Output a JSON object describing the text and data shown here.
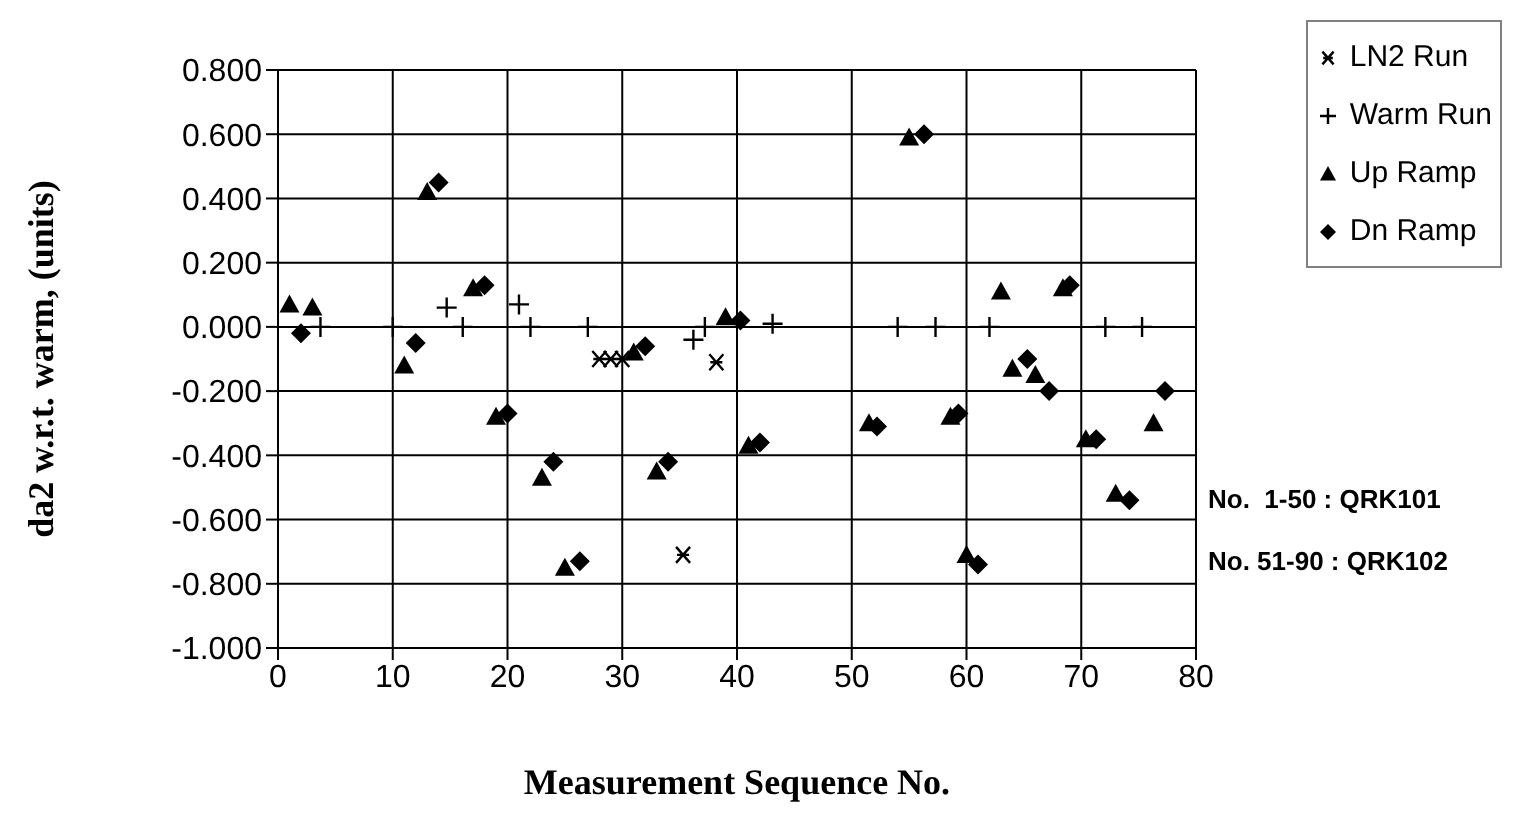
{
  "chart_data": {
    "type": "scatter",
    "xlabel": "Measurement Sequence No.",
    "ylabel": "da2 w.r.t. warm, (units)",
    "xlim": [
      0,
      80
    ],
    "xticks": [
      0,
      10,
      20,
      30,
      40,
      50,
      60,
      70,
      80
    ],
    "ylim": [
      -1.0,
      0.8
    ],
    "yticks": [
      {
        "value": -1.0,
        "label": "-1.000"
      },
      {
        "value": -0.8,
        "label": "-0.800"
      },
      {
        "value": -0.6,
        "label": "-0.600"
      },
      {
        "value": -0.4,
        "label": "-0.400"
      },
      {
        "value": -0.2,
        "label": "-0.200"
      },
      {
        "value": 0,
        "label": "0.000"
      },
      {
        "value": 0.2,
        "label": "0.200"
      },
      {
        "value": 0.4,
        "label": "0.400"
      },
      {
        "value": 0.6,
        "label": "0.600"
      },
      {
        "value": 0.8,
        "label": "0.800"
      }
    ],
    "grid": true,
    "legend": "top right",
    "annotations": [
      "No.  1-50 : QRK101",
      "No. 51-90 : QRK102"
    ],
    "series": [
      {
        "name": "LN2 Run",
        "color": "#000000",
        "x": [
          28,
          29,
          30,
          35.3,
          38.2
        ],
        "values": [
          -0.1,
          -0.1,
          -0.1,
          -0.71,
          -0.11
        ]
      },
      {
        "name": "Warm Run",
        "color": "#000000",
        "marker": "cross",
        "x": [
          3.7,
          10,
          14.7,
          16.1,
          21,
          22,
          27,
          36.2,
          37.2,
          43.1,
          54,
          57.3,
          62,
          72.1,
          75.3
        ],
        "values": [
          0,
          0,
          0.06,
          0,
          0.07,
          0,
          0,
          -0.04,
          0,
          0.01,
          0,
          0,
          0,
          0,
          0
        ]
      },
      {
        "name": "Up Ramp",
        "color": "#000000",
        "marker": "triangle",
        "x": [
          1,
          3,
          11,
          13,
          17,
          19,
          23,
          25,
          31,
          33,
          39,
          41,
          51.5,
          55,
          58.6,
          60,
          63,
          64,
          66,
          68.4,
          70.4,
          73,
          76.3
        ],
        "values": [
          0.07,
          0.06,
          -0.12,
          0.42,
          0.12,
          -0.28,
          -0.47,
          -0.75,
          -0.08,
          -0.45,
          0.03,
          -0.37,
          -0.3,
          0.59,
          -0.28,
          -0.71,
          0.11,
          -0.13,
          -0.15,
          0.12,
          -0.35,
          -0.52,
          -0.3
        ]
      },
      {
        "name": "Dn Ramp",
        "color": "#000000",
        "marker": "diamond",
        "x": [
          2,
          12,
          14,
          18,
          20,
          24,
          26.3,
          32,
          34,
          40.3,
          42,
          52.2,
          56.3,
          59.3,
          61,
          65.3,
          67.2,
          69,
          71.3,
          74.2,
          77.3
        ],
        "values": [
          -0.02,
          -0.05,
          0.45,
          0.13,
          -0.27,
          -0.42,
          -0.73,
          -0.06,
          -0.42,
          0.02,
          -0.36,
          -0.31,
          0.6,
          -0.27,
          -0.74,
          -0.1,
          -0.2,
          0.13,
          -0.35,
          -0.54,
          -0.2
        ]
      }
    ]
  }
}
